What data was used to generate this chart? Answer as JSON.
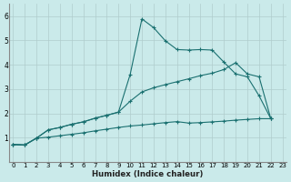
{
  "xlabel": "Humidex (Indice chaleur)",
  "xlim": [
    -0.3,
    23.3
  ],
  "ylim": [
    0,
    6.5
  ],
  "xticks": [
    0,
    1,
    2,
    3,
    4,
    5,
    6,
    7,
    8,
    9,
    10,
    11,
    12,
    13,
    14,
    15,
    16,
    17,
    18,
    19,
    20,
    21,
    22,
    23
  ],
  "yticks": [
    1,
    2,
    3,
    4,
    5,
    6
  ],
  "bg_color": "#caeaea",
  "grid_color": "#b0cccc",
  "line_color": "#1a7070",
  "curve1_x": [
    0,
    1,
    2,
    3,
    4,
    5,
    6,
    7,
    8,
    9,
    10,
    11,
    12,
    13,
    14,
    15,
    16,
    17,
    18,
    19,
    20,
    21,
    22
  ],
  "curve1_y": [
    0.72,
    0.7,
    0.98,
    1.32,
    1.42,
    1.55,
    1.65,
    1.8,
    1.92,
    2.05,
    3.6,
    5.88,
    5.52,
    4.98,
    4.62,
    4.6,
    4.62,
    4.6,
    4.1,
    3.62,
    3.5,
    2.72,
    1.78
  ],
  "curve2_x": [
    0,
    1,
    2,
    3,
    4,
    5,
    6,
    7,
    8,
    9,
    10,
    11,
    12,
    13,
    14,
    15,
    16,
    17,
    18,
    19,
    20,
    21,
    22
  ],
  "curve2_y": [
    0.72,
    0.7,
    0.98,
    1.32,
    1.42,
    1.55,
    1.65,
    1.8,
    1.92,
    2.05,
    2.5,
    2.88,
    3.05,
    3.18,
    3.3,
    3.42,
    3.55,
    3.65,
    3.8,
    4.08,
    3.62,
    3.5,
    1.78
  ],
  "curve3_x": [
    0,
    1,
    2,
    3,
    4,
    5,
    6,
    7,
    8,
    9,
    10,
    11,
    12,
    13,
    14,
    15,
    16,
    17,
    18,
    19,
    20,
    21,
    22
  ],
  "curve3_y": [
    0.72,
    0.7,
    0.98,
    1.02,
    1.08,
    1.14,
    1.2,
    1.28,
    1.35,
    1.42,
    1.48,
    1.52,
    1.57,
    1.62,
    1.66,
    1.6,
    1.62,
    1.65,
    1.68,
    1.72,
    1.75,
    1.78,
    1.78
  ]
}
